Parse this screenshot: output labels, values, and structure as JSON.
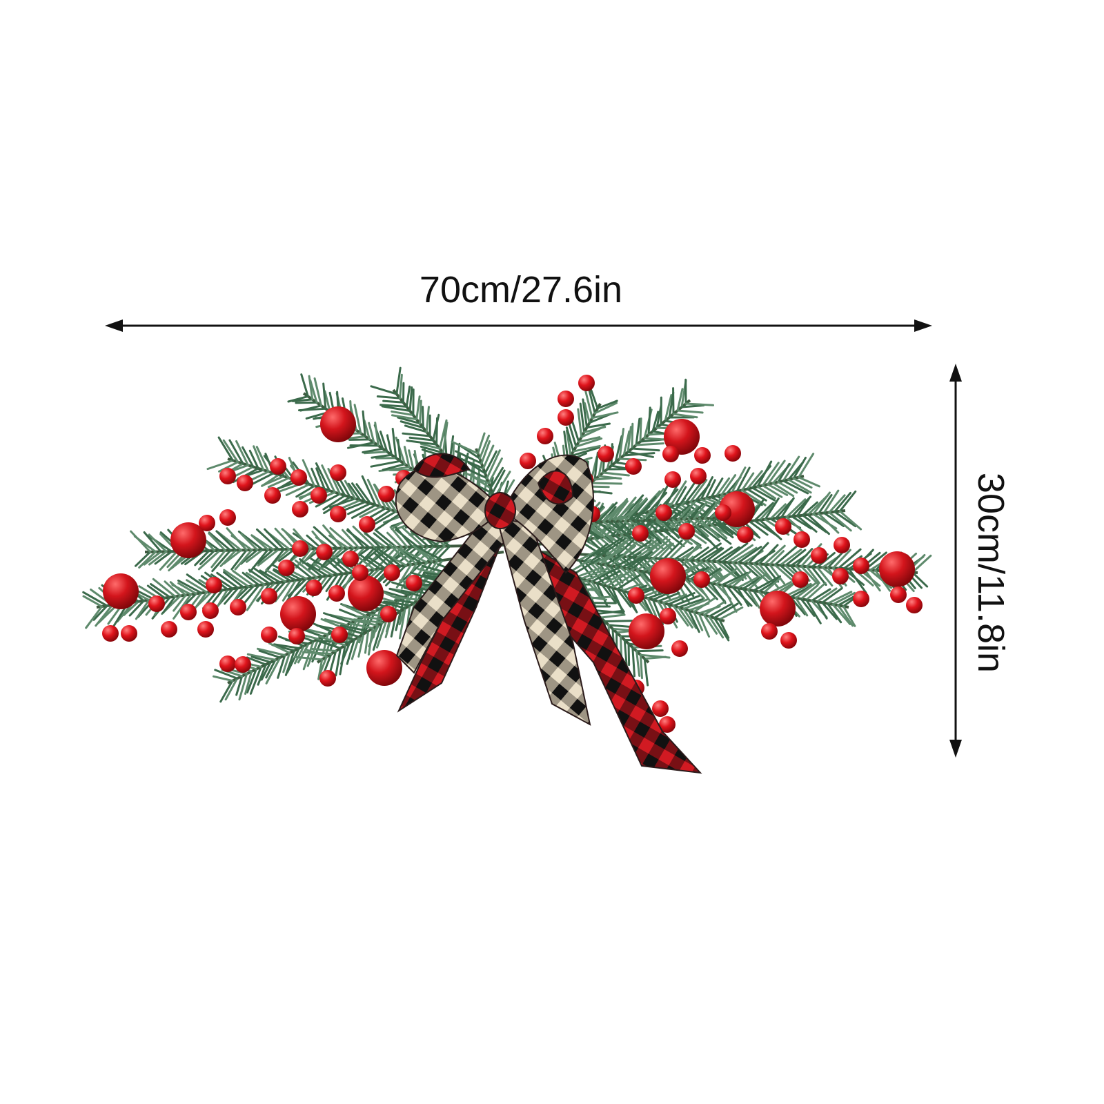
{
  "dimensions": {
    "width": "70cm/27.6in",
    "height": "30cm/11.8in"
  }
}
